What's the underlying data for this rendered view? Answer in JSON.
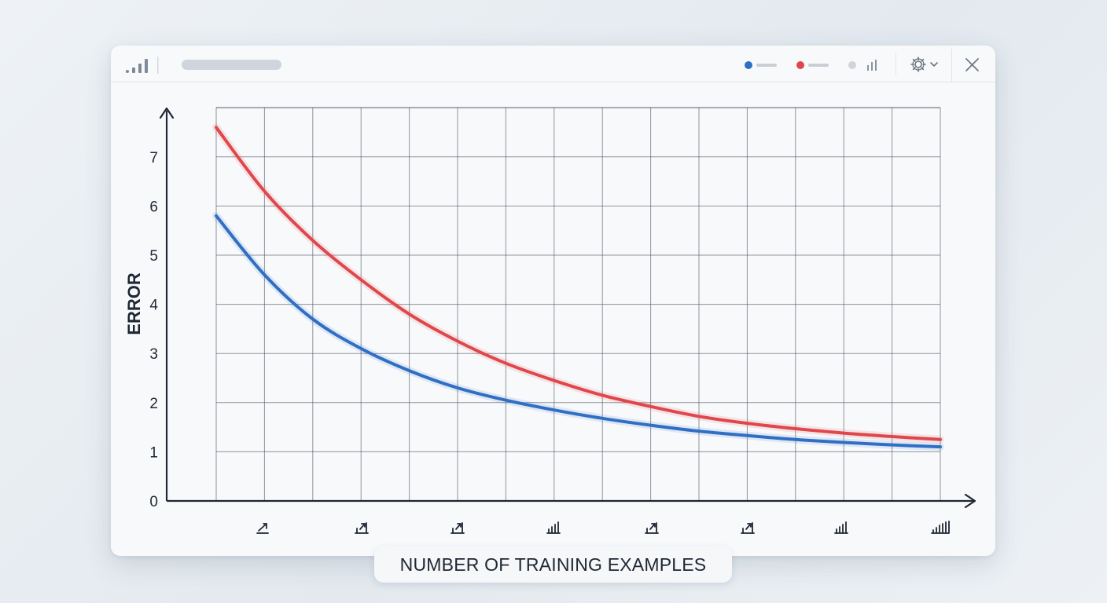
{
  "window": {
    "toolbar_icons": {
      "signal": "signal-bars-icon",
      "settings": "gear-icon",
      "settings_menu": "chevron-down-icon",
      "close": "close-icon",
      "chart_type": "bar-chart-icon"
    },
    "legend": [
      {
        "color": "#2f6fc4"
      },
      {
        "color": "#e0474c"
      },
      {
        "color": "#cfd4da"
      }
    ]
  },
  "chart_data": {
    "type": "line",
    "title": "",
    "xlabel": "NUMBER OF TRAINING EXAMPLES",
    "ylabel": "ERROR",
    "ylim": [
      0,
      8
    ],
    "y_ticks": [
      "0",
      "1",
      "2",
      "3",
      "4",
      "5",
      "6",
      "7"
    ],
    "x_tick_icons": [
      "chart-icon",
      "chart-icon",
      "chart-icon",
      "chart-icon",
      "chart-icon",
      "chart-icon",
      "chart-icon",
      "chart-icon"
    ],
    "grid": true,
    "x": [
      0,
      1,
      2,
      3,
      4,
      5,
      6,
      7,
      8,
      9,
      10,
      11,
      12,
      13,
      14,
      15
    ],
    "series": [
      {
        "color": "#e0474c",
        "values": [
          7.6,
          6.3,
          5.3,
          4.5,
          3.8,
          3.25,
          2.8,
          2.45,
          2.15,
          1.92,
          1.72,
          1.58,
          1.47,
          1.38,
          1.31,
          1.25
        ]
      },
      {
        "color": "#2f6fc4",
        "values": [
          5.8,
          4.6,
          3.7,
          3.1,
          2.65,
          2.3,
          2.05,
          1.85,
          1.68,
          1.54,
          1.42,
          1.33,
          1.25,
          1.19,
          1.14,
          1.1
        ]
      }
    ]
  }
}
